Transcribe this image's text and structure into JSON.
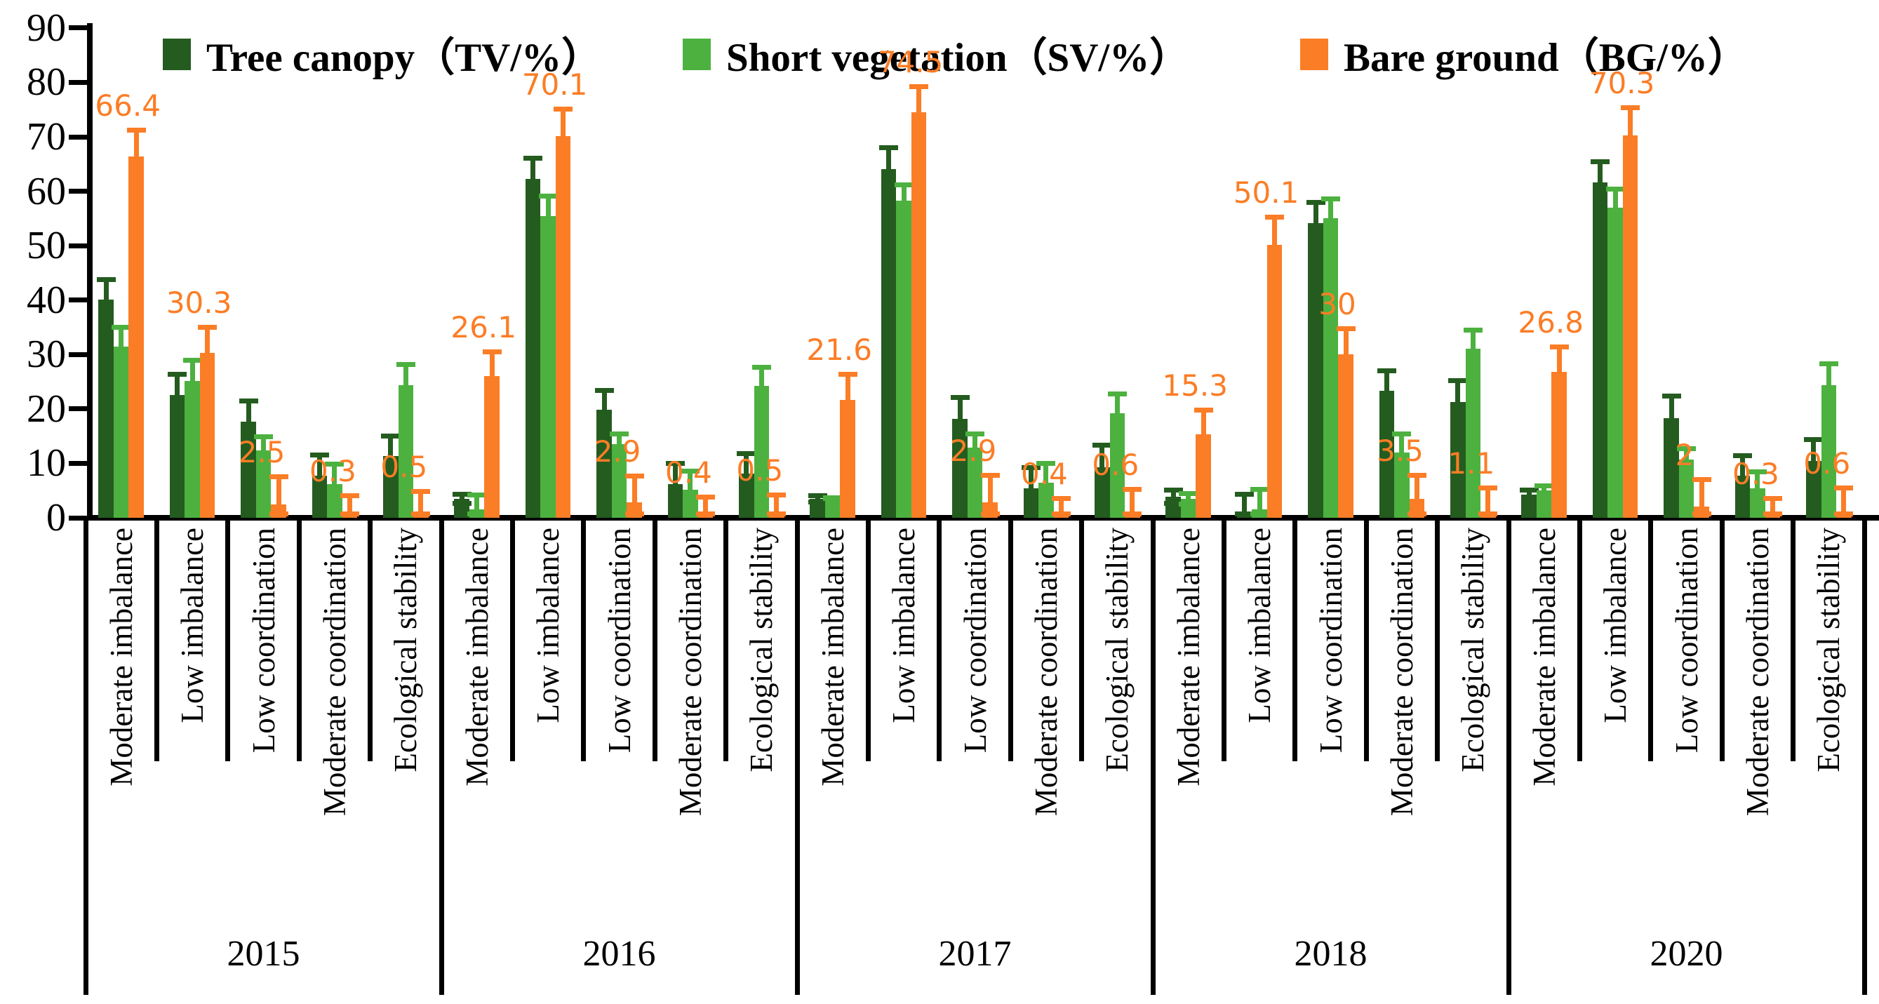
{
  "colors": {
    "tree_canopy": "#245c1f",
    "short_vegetation": "#4cb13f",
    "bare_ground": "#fb7d26",
    "axis": "#000000"
  },
  "legend": {
    "items": [
      {
        "label": "Tree canopy（TV/%）",
        "color_key": "tree_canopy"
      },
      {
        "label": "Short vegetation（SV/%）",
        "color_key": "short_vegetation"
      },
      {
        "label": "Bare ground（BG/%）",
        "color_key": "bare_ground"
      }
    ]
  },
  "chart_data": {
    "type": "bar",
    "title": "",
    "xlabel": "",
    "ylabel": "",
    "ylim": [
      0,
      90
    ],
    "yticks": [
      0,
      10,
      20,
      30,
      40,
      50,
      60,
      70,
      80,
      90
    ],
    "grid": false,
    "legend_position": "top",
    "categories": [
      "Moderate imbalance",
      "Low imbalance",
      "Low coordination",
      "Moderate coordination",
      "Ecological stability"
    ],
    "years": [
      "2015",
      "2016",
      "2017",
      "2018",
      "2020"
    ],
    "series_names": [
      "Tree canopy (TV/%)",
      "Short vegetation (SV/%)",
      "Bare ground (BG/%)"
    ],
    "data": [
      {
        "year": "2015",
        "groups": [
          {
            "category": "Moderate imbalance",
            "tv": [
              40.1,
              4.1
            ],
            "sv": [
              31.5,
              3.9
            ],
            "bg": [
              66.4,
              5.3
            ],
            "bg_label": "66.4"
          },
          {
            "category": "Low imbalance",
            "tv": [
              22.6,
              4.2
            ],
            "sv": [
              25.2,
              4.2
            ],
            "bg": [
              30.3,
              5.1
            ],
            "bg_label": "30.3"
          },
          {
            "category": "Low coordination",
            "tv": [
              17.7,
              4.2
            ],
            "sv": [
              12.4,
              2.9
            ],
            "bg": [
              2.5,
              5.5
            ],
            "bg_label": "2.5"
          },
          {
            "category": "Moderate coordination",
            "tv": [
              7.7,
              4.3
            ],
            "sv": [
              6.2,
              4.1
            ],
            "bg": [
              0.3,
              4.2
            ],
            "bg_label": "0.3"
          },
          {
            "category": "Ecological stability",
            "tv": [
              11.3,
              4.2
            ],
            "sv": [
              24.4,
              4.2
            ],
            "bg": [
              0.5,
              4.8
            ],
            "bg_label": "0.5"
          }
        ]
      },
      {
        "year": "2016",
        "groups": [
          {
            "category": "Moderate imbalance",
            "tv": [
              3.5,
              1.3
            ],
            "sv": [
              1.5,
              3.1
            ],
            "bg": [
              26.1,
              4.9
            ],
            "bg_label": "26.1"
          },
          {
            "category": "Low imbalance",
            "tv": [
              62.3,
              4.2
            ],
            "sv": [
              55.4,
              4.1
            ],
            "bg": [
              70.1,
              5.4
            ],
            "bg_label": "70.1"
          },
          {
            "category": "Low coordination",
            "tv": [
              19.8,
              4.0
            ],
            "sv": [
              13.6,
              2.3
            ],
            "bg": [
              2.9,
              5.2
            ],
            "bg_label": "2.9"
          },
          {
            "category": "Moderate coordination",
            "tv": [
              6.2,
              4.3
            ],
            "sv": [
              5.2,
              3.8
            ],
            "bg": [
              0.4,
              3.9
            ],
            "bg_label": "0.4"
          },
          {
            "category": "Ecological stability",
            "tv": [
              8.1,
              4.2
            ],
            "sv": [
              24.3,
              3.8
            ],
            "bg": [
              0.5,
              4.1
            ],
            "bg_label": "0.5"
          }
        ]
      },
      {
        "year": "2017",
        "groups": [
          {
            "category": "Moderate imbalance",
            "tv": [
              3.5,
              1.0
            ],
            "sv": [
              3.6,
              0.5
            ],
            "bg": [
              21.6,
              5.2
            ],
            "bg_label": "21.6"
          },
          {
            "category": "Low imbalance",
            "tv": [
              64.1,
              4.3
            ],
            "sv": [
              58.3,
              3.3
            ],
            "bg": [
              74.5,
              5.2
            ],
            "bg_label": "74.5"
          },
          {
            "category": "Low coordination",
            "tv": [
              18.2,
              4.3
            ],
            "sv": [
              12.9,
              3.0
            ],
            "bg": [
              2.9,
              5.4
            ],
            "bg_label": "2.9"
          },
          {
            "category": "Moderate coordination",
            "tv": [
              5.4,
              4.3
            ],
            "sv": [
              6.5,
              3.9
            ],
            "bg": [
              0.4,
              3.6
            ],
            "bg_label": "0.4"
          },
          {
            "category": "Ecological stability",
            "tv": [
              9.3,
              4.5
            ],
            "sv": [
              19.2,
              4.0
            ],
            "bg": [
              0.6,
              5.1
            ],
            "bg_label": "0.6"
          }
        ]
      },
      {
        "year": "2018",
        "groups": [
          {
            "category": "Moderate imbalance",
            "tv": [
              3.9,
              1.7
            ],
            "sv": [
              3.5,
              1.4
            ],
            "bg": [
              15.3,
              5.0
            ],
            "bg_label": "15.3"
          },
          {
            "category": "Low imbalance",
            "tv": [
              0.6,
              4.2
            ],
            "sv": [
              1.6,
              4.1
            ],
            "bg": [
              50.1,
              5.6
            ],
            "bg_label": "50.1"
          },
          {
            "category": "Low coordination",
            "tv": [
              54.2,
              4.2
            ],
            "sv": [
              55.0,
              4.1
            ],
            "bg": [
              30,
              5.2
            ],
            "bg_label": "30"
          },
          {
            "category": "Moderate coordination",
            "tv": [
              23.3,
              4.1
            ],
            "sv": [
              12.0,
              3.9
            ],
            "bg": [
              3.5,
              4.8
            ],
            "bg_label": "3.5"
          },
          {
            "category": "Ecological stability",
            "tv": [
              21.3,
              4.3
            ],
            "sv": [
              31.1,
              3.9
            ],
            "bg": [
              1.1,
              4.8
            ],
            "bg_label": "1.1"
          }
        ]
      },
      {
        "year": "2020",
        "groups": [
          {
            "category": "Moderate imbalance",
            "tv": [
              4.2,
              1.4
            ],
            "sv": [
              5.0,
              1.3
            ],
            "bg": [
              26.8,
              5.1
            ],
            "bg_label": "26.8"
          },
          {
            "category": "Low imbalance",
            "tv": [
              61.6,
              4.3
            ],
            "sv": [
              57.0,
              3.8
            ],
            "bg": [
              70.3,
              5.5
            ],
            "bg_label": "70.3"
          },
          {
            "category": "Low coordination",
            "tv": [
              18.3,
              4.5
            ],
            "sv": [
              10.7,
              2.5
            ],
            "bg": [
              2,
              5.5
            ],
            "bg_label": "2"
          },
          {
            "category": "Moderate coordination",
            "tv": [
              7.7,
              4.1
            ],
            "sv": [
              5.4,
              3.5
            ],
            "bg": [
              0.3,
              3.7
            ],
            "bg_label": "0.3"
          },
          {
            "category": "Ecological stability",
            "tv": [
              10.5,
              4.3
            ],
            "sv": [
              24.4,
              4.4
            ],
            "bg": [
              0.6,
              5.3
            ],
            "bg_label": "0.6"
          }
        ]
      }
    ]
  }
}
